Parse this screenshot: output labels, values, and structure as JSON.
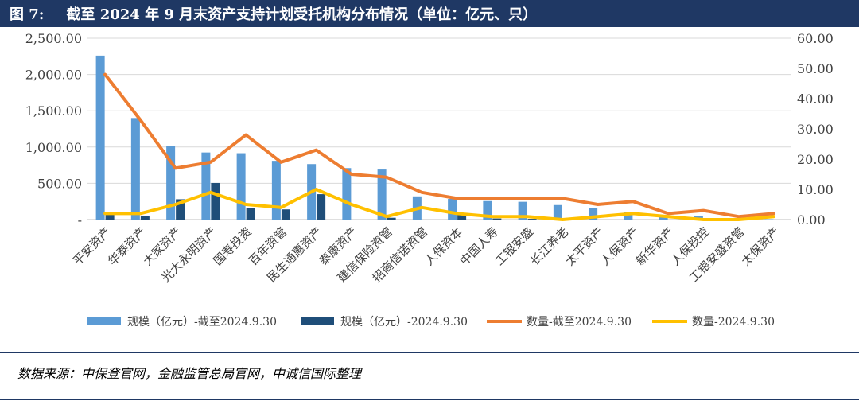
{
  "title": {
    "figure_no": "图 7:",
    "text": "截至 2024 年 9 月末资产支持计划受托机构分布情况（单位：亿元、只）"
  },
  "source": "数据来源：中保登官网，金融监管总局官网，中诚信国际整理",
  "colors": {
    "title_bg": "#1f3864",
    "bar_total": "#5b9bd5",
    "bar_new": "#1f4e79",
    "line_total": "#ed7d31",
    "line_new": "#ffc000"
  },
  "chart_data": {
    "type": "bar+line",
    "categories": [
      "平安资产",
      "华泰资产",
      "大家资产",
      "光大永明资产",
      "国寿投资",
      "百年资管",
      "民生通惠资产",
      "泰康资产",
      "建信保险资管",
      "招商信诺资管",
      "人保资本",
      "中国人寿",
      "工银安盛",
      "长江养老",
      "太平资产",
      "人保资产",
      "新华资产",
      "人保投控",
      "工银安盛资管",
      "太保资产"
    ],
    "left_axis": {
      "ylim": [
        0,
        2500
      ],
      "ticks": [
        "-",
        "500.00",
        "1,000.00",
        "1,500.00",
        "2,000.00",
        "2,500.00"
      ]
    },
    "right_axis": {
      "ylim": [
        0,
        60
      ],
      "ticks": [
        "0.00",
        "10.00",
        "20.00",
        "30.00",
        "40.00",
        "50.00",
        "60.00"
      ]
    },
    "series": [
      {
        "name": "规模（亿元）-截至2024.9.30",
        "kind": "bar",
        "axis": "left",
        "values": [
          2260,
          1400,
          1010,
          925,
          915,
          810,
          765,
          710,
          690,
          320,
          285,
          255,
          245,
          200,
          155,
          105,
          40,
          50,
          10,
          5
        ]
      },
      {
        "name": "规模（亿元）-2024.9.30",
        "kind": "bar",
        "axis": "left",
        "values": [
          75,
          55,
          280,
          505,
          160,
          140,
          350,
          0,
          25,
          0,
          70,
          15,
          10,
          0,
          0,
          0,
          0,
          0,
          0,
          0
        ]
      },
      {
        "name": "数量-截至2024.9.30",
        "kind": "line",
        "axis": "right",
        "values": [
          48,
          33,
          17,
          19,
          28,
          19,
          23,
          15,
          14,
          9,
          7,
          7,
          7,
          7,
          5,
          6,
          2,
          3,
          1,
          2
        ]
      },
      {
        "name": "数量-2024.9.30",
        "kind": "line",
        "axis": "right",
        "values": [
          2,
          2,
          5,
          9,
          5,
          4,
          10,
          5,
          1,
          4,
          2,
          1,
          1,
          0,
          1,
          2,
          1,
          0,
          0,
          1
        ]
      }
    ],
    "legend_position": "bottom"
  }
}
